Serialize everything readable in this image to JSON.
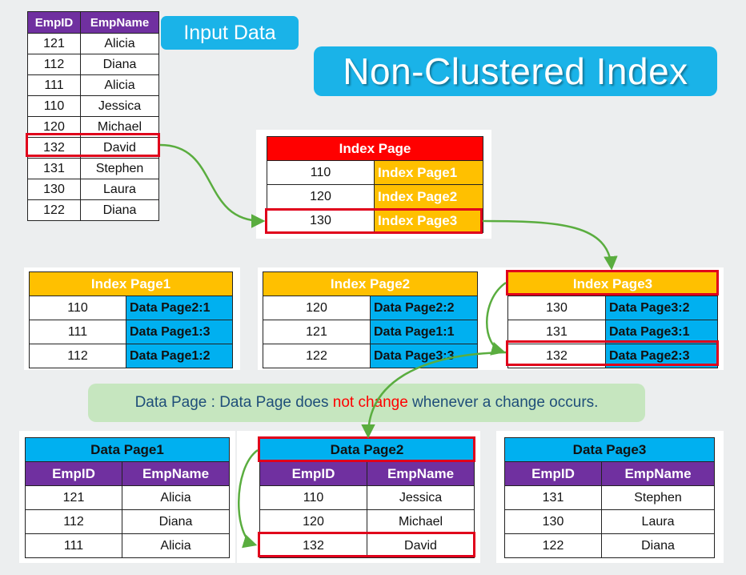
{
  "input_label": "Input Data",
  "title": "Non-Clustered Index",
  "input_table": {
    "headers": [
      "EmpID",
      "EmpName"
    ],
    "rows": [
      [
        "121",
        "Alicia"
      ],
      [
        "112",
        "Diana"
      ],
      [
        "111",
        "Alicia"
      ],
      [
        "110",
        "Jessica"
      ],
      [
        "120",
        "Michael"
      ],
      [
        "132",
        "David"
      ],
      [
        "131",
        "Stephen"
      ],
      [
        "130",
        "Laura"
      ],
      [
        "122",
        "Diana"
      ]
    ]
  },
  "root_index": {
    "header": "Index Page",
    "rows": [
      [
        "110",
        "Index Page1"
      ],
      [
        "120",
        "Index Page2"
      ],
      [
        "130",
        "Index Page3"
      ]
    ]
  },
  "index_pages": [
    {
      "header": "Index Page1",
      "rows": [
        [
          "110",
          "Data Page2:1"
        ],
        [
          "111",
          "Data Page1:3"
        ],
        [
          "112",
          "Data Page1:2"
        ]
      ]
    },
    {
      "header": "Index Page2",
      "rows": [
        [
          "120",
          "Data Page2:2"
        ],
        [
          "121",
          "Data Page1:1"
        ],
        [
          "122",
          "Data Page3:3"
        ]
      ]
    },
    {
      "header": "Index Page3",
      "rows": [
        [
          "130",
          "Data Page3:2"
        ],
        [
          "131",
          "Data Page3:1"
        ],
        [
          "132",
          "Data Page2:3"
        ]
      ]
    }
  ],
  "note": {
    "part1": "Data Page : Data Page does ",
    "highlight": "not change",
    "part2": " whenever a change occurs."
  },
  "data_pages": [
    {
      "header": "Data Page1",
      "col_headers": [
        "EmpID",
        "EmpName"
      ],
      "rows": [
        [
          "121",
          "Alicia"
        ],
        [
          "112",
          "Diana"
        ],
        [
          "111",
          "Alicia"
        ]
      ]
    },
    {
      "header": "Data Page2",
      "col_headers": [
        "EmpID",
        "EmpName"
      ],
      "rows": [
        [
          "110",
          "Jessica"
        ],
        [
          "120",
          "Michael"
        ],
        [
          "132",
          "David"
        ]
      ]
    },
    {
      "header": "Data Page3",
      "col_headers": [
        "EmpID",
        "EmpName"
      ],
      "rows": [
        [
          "131",
          "Stephen"
        ],
        [
          "130",
          "Laura"
        ],
        [
          "122",
          "Diana"
        ]
      ]
    }
  ],
  "colors": {
    "purple": "#7030a0",
    "red": "#ff0000",
    "yellow": "#ffc000",
    "blue": "#00b0f0",
    "arrow_green": "#5aad3f",
    "note_bg": "#c6e6bf"
  }
}
